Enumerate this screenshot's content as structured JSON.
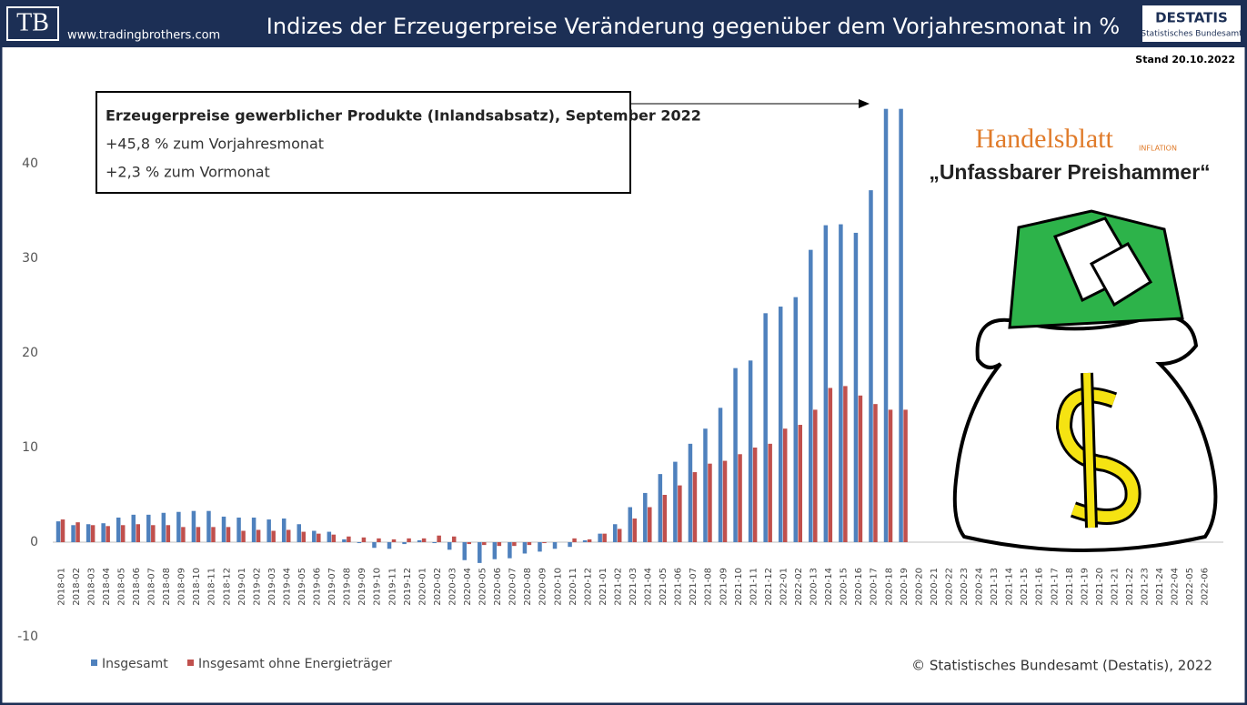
{
  "header": {
    "logo": "TB",
    "website": "www.tradingbrothers.com",
    "source_logo": "DESTATIS",
    "source_logo_sub": "Statistisches Bundesamt"
  },
  "chart_data": {
    "type": "bar",
    "title": "Indizes der Erzeugerpreise Veränderung gegenüber dem Vorjahresmonat in %",
    "stand": "Stand 20.10.2022",
    "annotation_box": [
      "Erzeugerpreise gewerblicher Produkte (Inlandsabsatz), September 2022",
      "+45,8 % zum Vorjahresmonat",
      "+2,3 % zum Vormonat"
    ],
    "press": {
      "name": "Handelsblatt",
      "tag": "INFLATION",
      "quote": "„Unfassbarer Preishammer“"
    },
    "copyright": "© Statistisches Bundesamt (Destatis), 2022",
    "categories": [
      "2018-01",
      "2018-02",
      "2018-03",
      "2018-04",
      "2018-05",
      "2018-06",
      "2018-07",
      "2018-08",
      "2018-09",
      "2018-10",
      "2018-11",
      "2018-12",
      "2019-01",
      "2019-02",
      "2019-03",
      "2019-04",
      "2019-05",
      "2019-06",
      "2019-07",
      "2019-08",
      "2019-09",
      "2019-10",
      "2019-11",
      "2019-12",
      "2020-01",
      "2020-02",
      "2020-03",
      "2020-04",
      "2020-05",
      "2020-06",
      "2020-07",
      "2020-08",
      "2020-09",
      "2020-10",
      "2020-11",
      "2020-12",
      "2021-01",
      "2021-02",
      "2021-03",
      "2021-04",
      "2021-05",
      "2021-06",
      "2021-07",
      "2021-08",
      "2021-09",
      "2021-10",
      "2021-11",
      "2021-12",
      "2022-01",
      "2022-02",
      "2020-13",
      "2020-14",
      "2020-15",
      "2020-16",
      "2020-17",
      "2020-18",
      "2020-19",
      "2020-20",
      "2020-21",
      "2020-22",
      "2020-23",
      "2020-24",
      "2021-13",
      "2021-14",
      "2021-15",
      "2021-16",
      "2021-17",
      "2021-18",
      "2021-19",
      "2021-20",
      "2021-21",
      "2021-22",
      "2021-23",
      "2021-24",
      "2022-04",
      "2022-05",
      "2022-06"
    ],
    "series": [
      {
        "name": "Insgesamt",
        "color": "#4f81bd",
        "values": [
          2.2,
          1.8,
          1.9,
          2.0,
          2.6,
          2.9,
          2.9,
          3.1,
          3.2,
          3.3,
          3.3,
          2.7,
          2.6,
          2.6,
          2.4,
          2.5,
          1.9,
          1.2,
          1.1,
          0.3,
          -0.1,
          -0.6,
          -0.7,
          -0.2,
          0.2,
          -0.1,
          -0.8,
          -1.9,
          -2.2,
          -1.8,
          -1.7,
          -1.2,
          -1.0,
          -0.7,
          -0.5,
          0.2,
          0.9,
          1.9,
          3.7,
          5.2,
          7.2,
          8.5,
          10.4,
          12.0,
          14.2,
          18.4,
          19.2,
          24.2,
          24.9,
          25.9,
          30.9,
          33.5,
          33.6,
          32.7,
          37.2,
          45.8,
          45.8,
          null,
          null,
          null,
          null,
          null,
          null,
          null,
          null,
          null,
          null,
          null,
          null,
          null,
          null,
          null,
          null,
          null,
          null,
          null,
          null
        ]
      },
      {
        "name": "Insgesamt ohne Energieträger",
        "color": "#c0504d",
        "values": [
          2.4,
          2.1,
          1.8,
          1.7,
          1.8,
          1.9,
          1.8,
          1.8,
          1.6,
          1.6,
          1.6,
          1.6,
          1.2,
          1.3,
          1.2,
          1.3,
          1.1,
          0.9,
          0.8,
          0.6,
          0.5,
          0.4,
          0.3,
          0.4,
          0.4,
          0.7,
          0.6,
          -0.2,
          -0.3,
          -0.4,
          -0.4,
          -0.3,
          -0.1,
          0.0,
          0.4,
          0.3,
          0.9,
          1.4,
          2.5,
          3.7,
          5.0,
          6.0,
          7.4,
          8.3,
          8.6,
          9.3,
          10.0,
          10.4,
          12.0,
          12.4,
          14.0,
          16.3,
          16.5,
          15.5,
          14.6,
          14.0,
          14.0,
          null,
          null,
          null,
          null,
          null,
          null,
          null,
          null,
          null,
          null,
          null,
          null,
          null,
          null,
          null,
          null,
          null,
          null,
          null,
          null
        ]
      }
    ],
    "ylim": [
      -10,
      50
    ],
    "yticks": [
      -10,
      0,
      10,
      20,
      30,
      40
    ],
    "grid": false,
    "legend": "bottom-left"
  }
}
